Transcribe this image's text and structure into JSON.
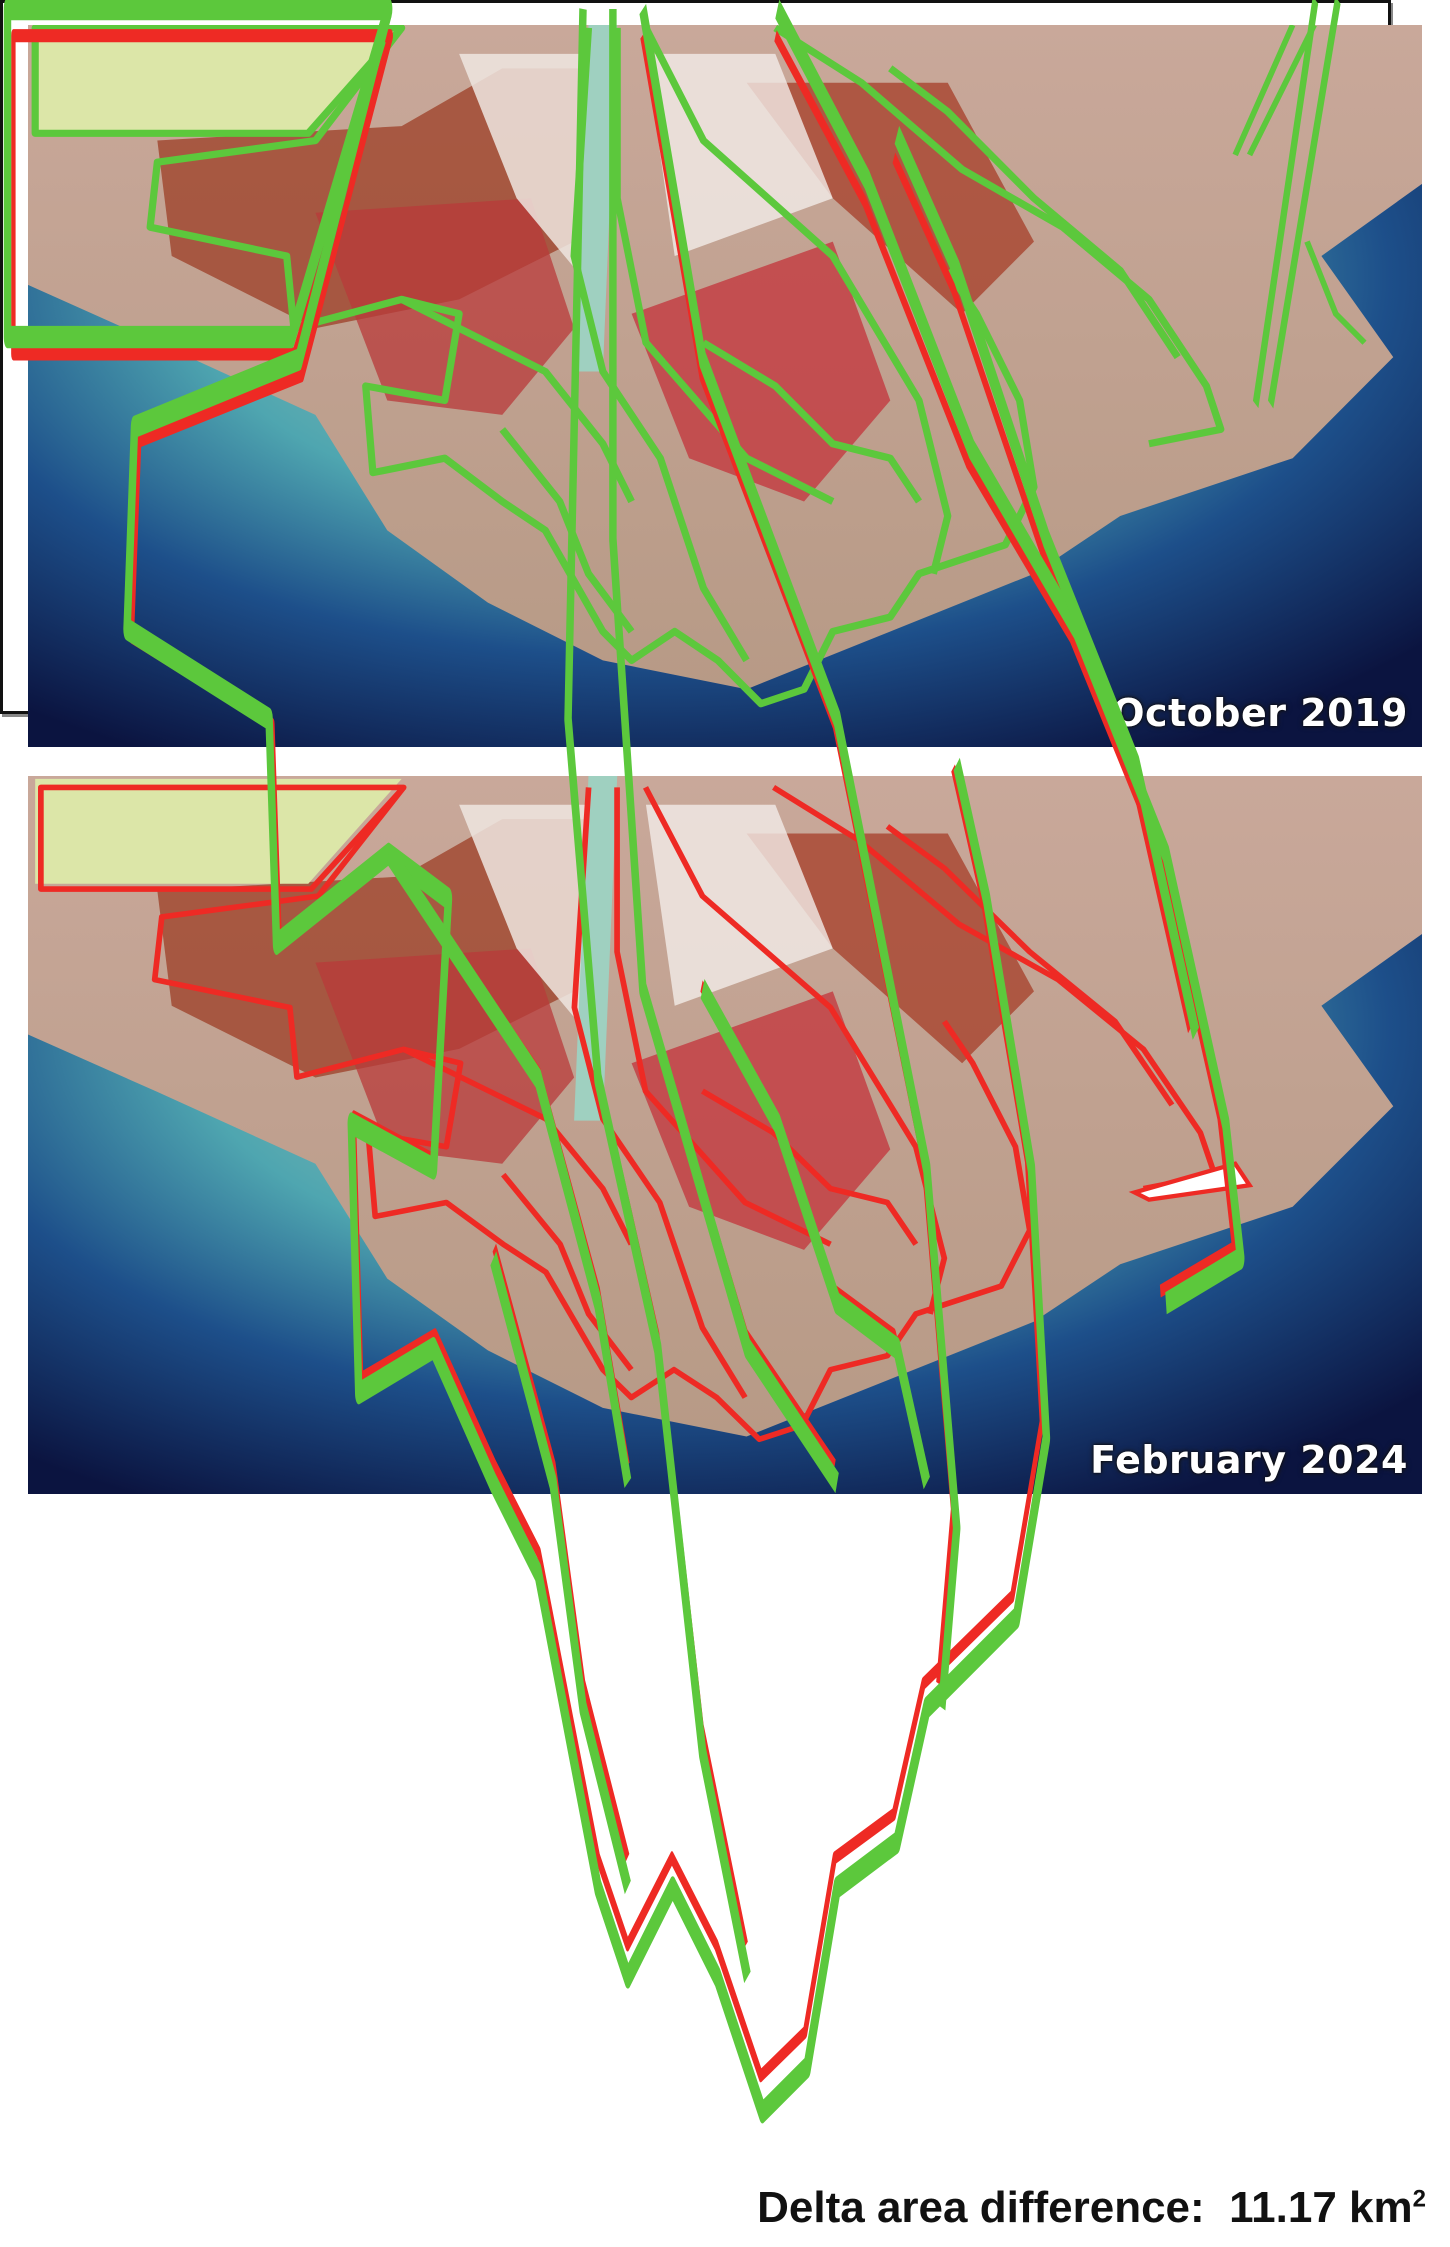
{
  "panels": [
    {
      "label": "October 2019",
      "outline_color": "#5cc83c"
    },
    {
      "label": "February 2024",
      "outline_color": "#ee2a24"
    }
  ],
  "difference": {
    "label": "Delta area difference:",
    "value": "11.17",
    "unit": "km",
    "unit_exponent": "2"
  },
  "colors": {
    "outline_2019": "#5cc83c",
    "outline_2024": "#ee2a24",
    "water_deep": "#0e1a4a",
    "water_shallow": "#3aa0a8"
  }
}
